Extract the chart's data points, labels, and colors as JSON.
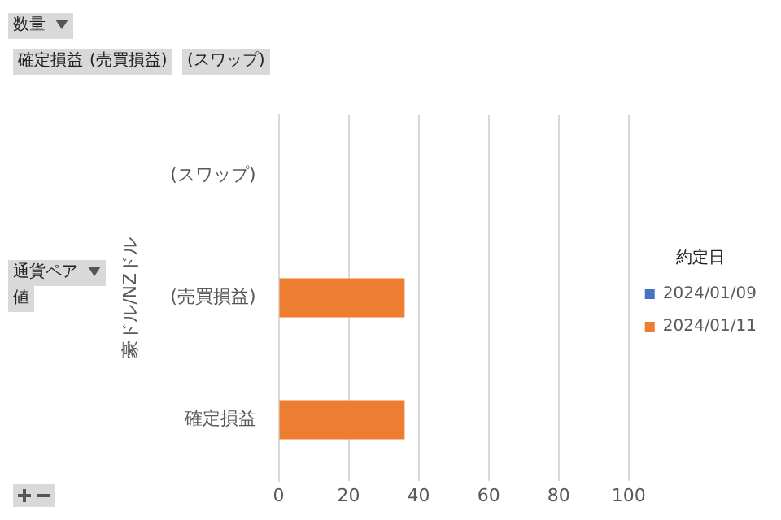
{
  "chart_data": {
    "type": "bar",
    "orientation": "horizontal",
    "categories": [
      "(スワップ)",
      "(売買損益)",
      "確定損益"
    ],
    "series": [
      {
        "name": "2024/01/09",
        "color": "#4472c4",
        "values": [
          null,
          null,
          null
        ]
      },
      {
        "name": "2024/01/11",
        "color": "#ed7d31",
        "values": [
          null,
          36,
          36
        ]
      }
    ],
    "xlim": [
      0,
      100
    ],
    "xticks": [
      0,
      20,
      40,
      60,
      80,
      100
    ],
    "ylabel": "豪ドル/NZドル",
    "legend_title": "約定日",
    "legend": "right",
    "grid": "x",
    "annotations": [
      "数量",
      "確定損益",
      "(売買損益)",
      "(スワップ)",
      "通貨ペア",
      "値"
    ]
  }
}
